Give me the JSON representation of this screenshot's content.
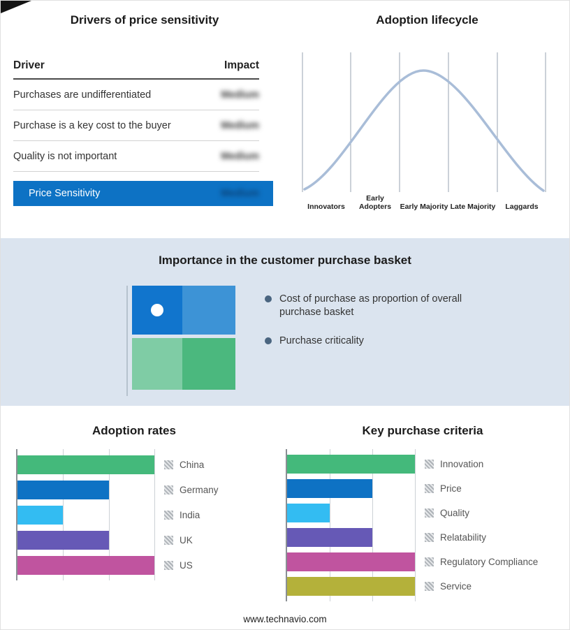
{
  "drivers": {
    "title": "Drivers of price sensitivity",
    "columns": {
      "driver": "Driver",
      "impact": "Impact"
    },
    "rows": [
      {
        "driver": "Purchases are undifferentiated",
        "impact": "Medium"
      },
      {
        "driver": "Purchase is a key cost to the buyer",
        "impact": "Medium"
      },
      {
        "driver": "Quality is not important",
        "impact": "Medium"
      }
    ],
    "highlight": {
      "driver": "Price Sensitivity",
      "impact": "Medium",
      "color": "#0d72c4"
    }
  },
  "basket": {
    "title": "Importance in the customer purchase basket",
    "bullets": [
      "Cost of purchase as proportion of overall purchase basket",
      "Purchase criticality"
    ],
    "matrix_colors": {
      "top_left": "#1175cd",
      "top_right": "#3d93d6",
      "bottom_left": "#7fcca5",
      "bottom_right": "#4bb87e",
      "dot": "#ffffff"
    },
    "background": "#dbe4ef"
  },
  "chart_data": [
    {
      "type": "bar",
      "title": "Adoption rates",
      "orientation": "horizontal",
      "categories": [
        "China",
        "Germany",
        "India",
        "UK",
        "US"
      ],
      "values": [
        3,
        2,
        1,
        2,
        3
      ],
      "xlim": [
        0,
        3
      ],
      "gridlines": true,
      "legend_position": "right",
      "colors": [
        "#44b97b",
        "#0e72c4",
        "#33bcf2",
        "#6659b6",
        "#c0549f"
      ]
    },
    {
      "type": "bar",
      "title": "Key purchase criteria",
      "orientation": "horizontal",
      "categories": [
        "Innovation",
        "Price",
        "Quality",
        "Relatability",
        "Regulatory Compliance",
        "Service"
      ],
      "values": [
        3,
        2,
        1,
        2,
        3,
        3
      ],
      "xlim": [
        0,
        3
      ],
      "gridlines": true,
      "legend_position": "right",
      "colors": [
        "#44b97b",
        "#0e72c4",
        "#33bcf2",
        "#6659b6",
        "#c0549f",
        "#b4b13a"
      ]
    },
    {
      "type": "line",
      "title": "Adoption lifecycle",
      "shape": "bell curve",
      "categories": [
        "Innovators",
        "Early Adopters",
        "Early Majority",
        "Late Majority",
        "Laggards"
      ],
      "curve_color": "#a9bdd8"
    }
  ],
  "footer": {
    "text": "www.technavio.com"
  }
}
